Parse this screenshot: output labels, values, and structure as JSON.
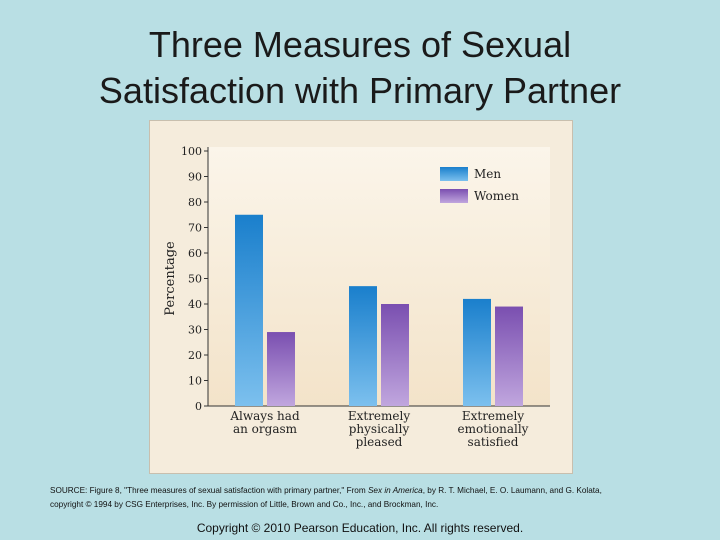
{
  "slide": {
    "title_line1": "Three Measures of Sexual",
    "title_line2": "Satisfaction with Primary Partner"
  },
  "source": {
    "prefix": "SOURCE: Figure 8, \"Three measures of sexual satisfaction with primary partner,\" From ",
    "book": "Sex in America",
    "suffix": ", by R. T. Michael, E. O. Laumann, and G. Kolata,",
    "line2": "copyright © 1994 by CSG Enterprises, Inc. By permission of Little, Brown and Co., Inc., and Brockman, Inc."
  },
  "footer": {
    "copyright": "Copyright © 2010 Pearson Education, Inc. All rights reserved."
  },
  "colors": {
    "men": "#1a7fcc",
    "women": "#7a4fb0",
    "panel_background": "#f5ecdc",
    "slide_background": "#b9dfe4"
  },
  "chart_data": {
    "type": "bar",
    "categories": [
      [
        "Always had",
        "an orgasm"
      ],
      [
        "Extremely",
        "physically",
        "pleased"
      ],
      [
        "Extremely",
        "emotionally",
        "satisfied"
      ]
    ],
    "series": [
      {
        "name": "Men",
        "values": [
          75,
          47,
          42
        ],
        "color": "#1a7fcc"
      },
      {
        "name": "Women",
        "values": [
          29,
          40,
          39
        ],
        "color": "#7a4fb0"
      }
    ],
    "ylabel": "Percentage",
    "xlabel": "",
    "ylim": [
      0,
      100
    ],
    "yticks": [
      0,
      10,
      20,
      30,
      40,
      50,
      60,
      70,
      80,
      90,
      100
    ],
    "legend_position": "top-right",
    "grid": false
  }
}
